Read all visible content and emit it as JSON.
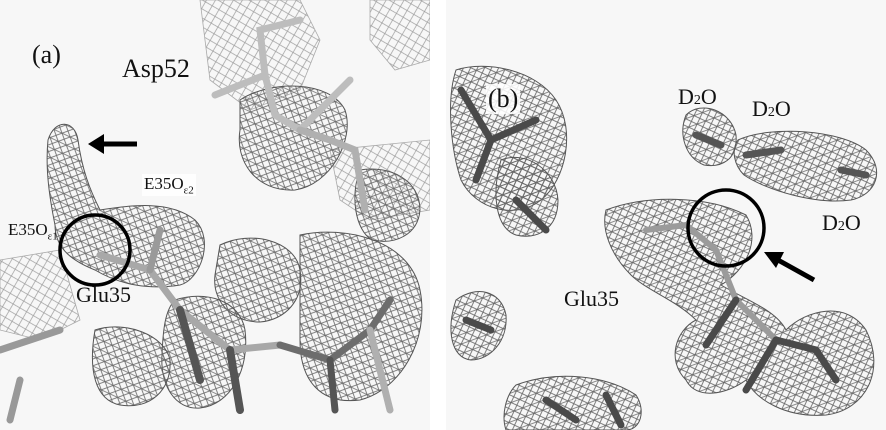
{
  "figure": {
    "panel_a": {
      "letter": "(a)",
      "residue_asp": "Asp52",
      "residue_glu": "Glu35",
      "oxygen_e2": {
        "main": "E35O",
        "sub": "ε2"
      },
      "oxygen_e1": {
        "main": "E35O",
        "sub": "ε1"
      }
    },
    "panel_b": {
      "letter": "(b)",
      "residue_glu": "Glu35",
      "d2o_1": {
        "pre": "D",
        "sub": "2",
        "post": "O"
      },
      "d2o_2": {
        "pre": "D",
        "sub": "2",
        "post": "O"
      },
      "d2o_3": {
        "pre": "D",
        "sub": "2",
        "post": "O"
      }
    }
  }
}
